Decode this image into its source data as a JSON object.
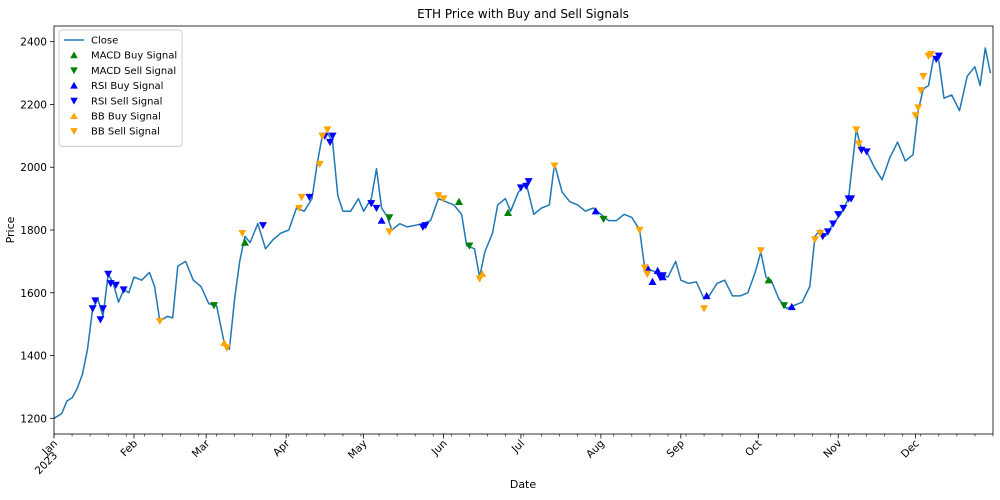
{
  "chart_data": {
    "type": "line",
    "title": "ETH Price with Buy and Sell Signals",
    "xlabel": "Date",
    "ylabel": "Price",
    "x_range": [
      "2023-01-01",
      "2023-12-31"
    ],
    "ylim": [
      1150,
      2450
    ],
    "y_ticks": [
      1200,
      1400,
      1600,
      1800,
      2000,
      2200,
      2400
    ],
    "x_ticks": [
      {
        "date": "2023-01-01",
        "label": "Jan",
        "sub": "2023"
      },
      {
        "date": "2023-02-01",
        "label": "Feb"
      },
      {
        "date": "2023-03-01",
        "label": "Mar"
      },
      {
        "date": "2023-04-01",
        "label": "Apr"
      },
      {
        "date": "2023-05-01",
        "label": "May"
      },
      {
        "date": "2023-06-01",
        "label": "Jun"
      },
      {
        "date": "2023-07-01",
        "label": "Jul"
      },
      {
        "date": "2023-08-01",
        "label": "Aug"
      },
      {
        "date": "2023-09-01",
        "label": "Sep"
      },
      {
        "date": "2023-10-01",
        "label": "Oct"
      },
      {
        "date": "2023-11-01",
        "label": "Nov"
      },
      {
        "date": "2023-12-01",
        "label": "Dec"
      }
    ],
    "grid": false,
    "legend_position": "top-left",
    "series": [
      {
        "name": "Close",
        "color": "#1f77b4",
        "points": [
          [
            "2023-01-01",
            1200
          ],
          [
            "2023-01-04",
            1215
          ],
          [
            "2023-01-06",
            1255
          ],
          [
            "2023-01-08",
            1265
          ],
          [
            "2023-01-10",
            1295
          ],
          [
            "2023-01-12",
            1340
          ],
          [
            "2023-01-14",
            1420
          ],
          [
            "2023-01-16",
            1550
          ],
          [
            "2023-01-18",
            1580
          ],
          [
            "2023-01-20",
            1525
          ],
          [
            "2023-01-22",
            1660
          ],
          [
            "2023-01-24",
            1630
          ],
          [
            "2023-01-26",
            1570
          ],
          [
            "2023-01-28",
            1610
          ],
          [
            "2023-01-30",
            1600
          ],
          [
            "2023-02-01",
            1650
          ],
          [
            "2023-02-04",
            1640
          ],
          [
            "2023-02-07",
            1665
          ],
          [
            "2023-02-09",
            1620
          ],
          [
            "2023-02-11",
            1510
          ],
          [
            "2023-02-14",
            1525
          ],
          [
            "2023-02-16",
            1520
          ],
          [
            "2023-02-18",
            1685
          ],
          [
            "2023-02-21",
            1700
          ],
          [
            "2023-02-24",
            1640
          ],
          [
            "2023-02-27",
            1620
          ],
          [
            "2023-03-02",
            1565
          ],
          [
            "2023-03-05",
            1560
          ],
          [
            "2023-03-08",
            1440
          ],
          [
            "2023-03-10",
            1420
          ],
          [
            "2023-03-12",
            1580
          ],
          [
            "2023-03-14",
            1700
          ],
          [
            "2023-03-16",
            1780
          ],
          [
            "2023-03-18",
            1760
          ],
          [
            "2023-03-21",
            1820
          ],
          [
            "2023-03-24",
            1740
          ],
          [
            "2023-03-27",
            1770
          ],
          [
            "2023-03-30",
            1790
          ],
          [
            "2023-04-02",
            1800
          ],
          [
            "2023-04-05",
            1870
          ],
          [
            "2023-04-08",
            1860
          ],
          [
            "2023-04-11",
            1900
          ],
          [
            "2023-04-13",
            2010
          ],
          [
            "2023-04-15",
            2100
          ],
          [
            "2023-04-17",
            2110
          ],
          [
            "2023-04-19",
            2080
          ],
          [
            "2023-04-21",
            1910
          ],
          [
            "2023-04-23",
            1860
          ],
          [
            "2023-04-26",
            1860
          ],
          [
            "2023-04-29",
            1900
          ],
          [
            "2023-05-01",
            1860
          ],
          [
            "2023-05-04",
            1900
          ],
          [
            "2023-05-06",
            1995
          ],
          [
            "2023-05-08",
            1870
          ],
          [
            "2023-05-10",
            1845
          ],
          [
            "2023-05-12",
            1800
          ],
          [
            "2023-05-15",
            1820
          ],
          [
            "2023-05-18",
            1810
          ],
          [
            "2023-05-21",
            1815
          ],
          [
            "2023-05-24",
            1820
          ],
          [
            "2023-05-27",
            1830
          ],
          [
            "2023-05-30",
            1900
          ],
          [
            "2023-06-02",
            1890
          ],
          [
            "2023-06-05",
            1880
          ],
          [
            "2023-06-08",
            1850
          ],
          [
            "2023-06-10",
            1750
          ],
          [
            "2023-06-13",
            1740
          ],
          [
            "2023-06-15",
            1650
          ],
          [
            "2023-06-17",
            1730
          ],
          [
            "2023-06-20",
            1790
          ],
          [
            "2023-06-22",
            1880
          ],
          [
            "2023-06-25",
            1900
          ],
          [
            "2023-06-27",
            1860
          ],
          [
            "2023-06-30",
            1920
          ],
          [
            "2023-07-03",
            1950
          ],
          [
            "2023-07-06",
            1850
          ],
          [
            "2023-07-09",
            1870
          ],
          [
            "2023-07-12",
            1880
          ],
          [
            "2023-07-14",
            2010
          ],
          [
            "2023-07-17",
            1920
          ],
          [
            "2023-07-20",
            1890
          ],
          [
            "2023-07-23",
            1880
          ],
          [
            "2023-07-26",
            1860
          ],
          [
            "2023-07-29",
            1870
          ],
          [
            "2023-08-01",
            1850
          ],
          [
            "2023-08-04",
            1830
          ],
          [
            "2023-08-07",
            1830
          ],
          [
            "2023-08-10",
            1850
          ],
          [
            "2023-08-13",
            1840
          ],
          [
            "2023-08-16",
            1800
          ],
          [
            "2023-08-18",
            1680
          ],
          [
            "2023-08-21",
            1670
          ],
          [
            "2023-08-24",
            1660
          ],
          [
            "2023-08-27",
            1650
          ],
          [
            "2023-08-30",
            1700
          ],
          [
            "2023-09-01",
            1640
          ],
          [
            "2023-09-04",
            1630
          ],
          [
            "2023-09-07",
            1635
          ],
          [
            "2023-09-10",
            1580
          ],
          [
            "2023-09-12",
            1590
          ],
          [
            "2023-09-15",
            1630
          ],
          [
            "2023-09-18",
            1640
          ],
          [
            "2023-09-21",
            1590
          ],
          [
            "2023-09-24",
            1590
          ],
          [
            "2023-09-27",
            1600
          ],
          [
            "2023-09-30",
            1670
          ],
          [
            "2023-10-02",
            1730
          ],
          [
            "2023-10-04",
            1650
          ],
          [
            "2023-10-06",
            1640
          ],
          [
            "2023-10-09",
            1580
          ],
          [
            "2023-10-12",
            1550
          ],
          [
            "2023-10-15",
            1560
          ],
          [
            "2023-10-18",
            1570
          ],
          [
            "2023-10-21",
            1620
          ],
          [
            "2023-10-23",
            1780
          ],
          [
            "2023-10-25",
            1800
          ],
          [
            "2023-10-27",
            1780
          ],
          [
            "2023-10-30",
            1820
          ],
          [
            "2023-11-02",
            1850
          ],
          [
            "2023-11-05",
            1900
          ],
          [
            "2023-11-08",
            2120
          ],
          [
            "2023-11-10",
            2060
          ],
          [
            "2023-11-12",
            2050
          ],
          [
            "2023-11-15",
            2000
          ],
          [
            "2023-11-18",
            1960
          ],
          [
            "2023-11-21",
            2030
          ],
          [
            "2023-11-24",
            2080
          ],
          [
            "2023-11-27",
            2020
          ],
          [
            "2023-11-30",
            2040
          ],
          [
            "2023-12-02",
            2180
          ],
          [
            "2023-12-04",
            2250
          ],
          [
            "2023-12-06",
            2260
          ],
          [
            "2023-12-08",
            2350
          ],
          [
            "2023-12-10",
            2340
          ],
          [
            "2023-12-12",
            2220
          ],
          [
            "2023-12-15",
            2230
          ],
          [
            "2023-12-18",
            2180
          ],
          [
            "2023-12-21",
            2290
          ],
          [
            "2023-12-24",
            2320
          ],
          [
            "2023-12-26",
            2260
          ],
          [
            "2023-12-28",
            2380
          ],
          [
            "2023-12-30",
            2300
          ]
        ]
      },
      {
        "name": "MACD Buy Signal",
        "marker": "triangle-up",
        "color": "#008000",
        "points": [
          [
            "2023-03-16",
            1760
          ],
          [
            "2023-06-07",
            1890
          ],
          [
            "2023-06-26",
            1855
          ],
          [
            "2023-10-05",
            1640
          ]
        ]
      },
      {
        "name": "MACD Sell Signal",
        "marker": "triangle-down",
        "color": "#008000",
        "points": [
          [
            "2023-03-04",
            1560
          ],
          [
            "2023-05-11",
            1840
          ],
          [
            "2023-06-11",
            1750
          ],
          [
            "2023-08-02",
            1835
          ],
          [
            "2023-10-11",
            1560
          ]
        ]
      },
      {
        "name": "RSI Buy Signal",
        "marker": "triangle-up",
        "color": "#0000ff",
        "points": [
          [
            "2023-05-08",
            1830
          ],
          [
            "2023-07-30",
            1860
          ],
          [
            "2023-08-19",
            1680
          ],
          [
            "2023-08-21",
            1635
          ],
          [
            "2023-08-23",
            1670
          ],
          [
            "2023-08-25",
            1650
          ],
          [
            "2023-09-11",
            1590
          ],
          [
            "2023-10-14",
            1555
          ]
        ]
      },
      {
        "name": "RSI Sell Signal",
        "marker": "triangle-down",
        "color": "#0000ff",
        "points": [
          [
            "2023-01-16",
            1550
          ],
          [
            "2023-01-17",
            1575
          ],
          [
            "2023-01-19",
            1515
          ],
          [
            "2023-01-20",
            1550
          ],
          [
            "2023-01-22",
            1660
          ],
          [
            "2023-01-23",
            1630
          ],
          [
            "2023-01-25",
            1625
          ],
          [
            "2023-01-28",
            1610
          ],
          [
            "2023-03-23",
            1815
          ],
          [
            "2023-04-10",
            1905
          ],
          [
            "2023-04-16",
            2100
          ],
          [
            "2023-04-18",
            2080
          ],
          [
            "2023-04-19",
            2100
          ],
          [
            "2023-05-04",
            1885
          ],
          [
            "2023-05-06",
            1870
          ],
          [
            "2023-05-24",
            1810
          ],
          [
            "2023-05-25",
            1815
          ],
          [
            "2023-07-01",
            1935
          ],
          [
            "2023-07-03",
            1940
          ],
          [
            "2023-07-04",
            1955
          ],
          [
            "2023-08-24",
            1650
          ],
          [
            "2023-08-25",
            1655
          ],
          [
            "2023-10-26",
            1780
          ],
          [
            "2023-10-28",
            1795
          ],
          [
            "2023-10-30",
            1820
          ],
          [
            "2023-11-01",
            1850
          ],
          [
            "2023-11-03",
            1870
          ],
          [
            "2023-11-05",
            1900
          ],
          [
            "2023-11-06",
            1900
          ],
          [
            "2023-11-10",
            2055
          ],
          [
            "2023-11-12",
            2050
          ],
          [
            "2023-12-09",
            2345
          ],
          [
            "2023-12-10",
            2355
          ]
        ]
      },
      {
        "name": "BB Buy Signal",
        "marker": "triangle-up",
        "color": "#ffa500",
        "points": [
          [
            "2023-03-08",
            1440
          ],
          [
            "2023-06-16",
            1660
          ]
        ]
      },
      {
        "name": "BB Sell Signal",
        "marker": "triangle-down",
        "color": "#ffa500",
        "points": [
          [
            "2023-02-11",
            1510
          ],
          [
            "2023-03-09",
            1425
          ],
          [
            "2023-03-15",
            1790
          ],
          [
            "2023-04-06",
            1870
          ],
          [
            "2023-04-07",
            1905
          ],
          [
            "2023-04-14",
            2010
          ],
          [
            "2023-04-15",
            2100
          ],
          [
            "2023-04-17",
            2120
          ],
          [
            "2023-05-11",
            1795
          ],
          [
            "2023-05-30",
            1910
          ],
          [
            "2023-06-01",
            1900
          ],
          [
            "2023-06-15",
            1645
          ],
          [
            "2023-07-14",
            2005
          ],
          [
            "2023-08-16",
            1800
          ],
          [
            "2023-08-18",
            1680
          ],
          [
            "2023-08-19",
            1660
          ],
          [
            "2023-09-10",
            1550
          ],
          [
            "2023-10-02",
            1735
          ],
          [
            "2023-10-23",
            1770
          ],
          [
            "2023-10-25",
            1790
          ],
          [
            "2023-11-08",
            2120
          ],
          [
            "2023-11-09",
            2075
          ],
          [
            "2023-12-01",
            2165
          ],
          [
            "2023-12-02",
            2190
          ],
          [
            "2023-12-03",
            2245
          ],
          [
            "2023-12-04",
            2290
          ],
          [
            "2023-12-06",
            2355
          ],
          [
            "2023-12-07",
            2360
          ]
        ]
      }
    ]
  }
}
